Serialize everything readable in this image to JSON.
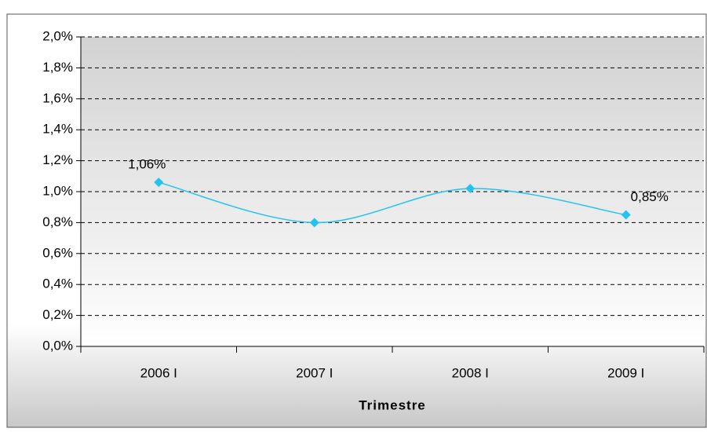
{
  "chart_data": {
    "type": "line",
    "x_label": "Trimestre",
    "categories": [
      "2006 I",
      "2007 I",
      "2008 I",
      "2009 I"
    ],
    "series": [
      {
        "color": "#22c4ee",
        "smooth": true,
        "values": [
          1.06,
          0.8,
          1.02,
          0.85
        ],
        "value_labels": [
          "1,06%",
          null,
          null,
          "0,85%"
        ]
      }
    ],
    "ylim": [
      0,
      2
    ],
    "yticks": [
      {
        "value": 0,
        "label": "0,0%"
      },
      {
        "value": 0.2,
        "label": "0,2%"
      },
      {
        "value": 0.4,
        "label": "0,4%"
      },
      {
        "value": 0.6,
        "label": "0,6%"
      },
      {
        "value": 0.8,
        "label": "0,8%"
      },
      {
        "value": 1.0,
        "label": "1,0%"
      },
      {
        "value": 1.2,
        "label": "1,2%"
      },
      {
        "value": 1.4,
        "label": "1,4%"
      },
      {
        "value": 1.6,
        "label": "1,6%"
      },
      {
        "value": 1.8,
        "label": "1,8%"
      },
      {
        "value": 2.0,
        "label": "2,0%"
      }
    ],
    "grid": true
  }
}
